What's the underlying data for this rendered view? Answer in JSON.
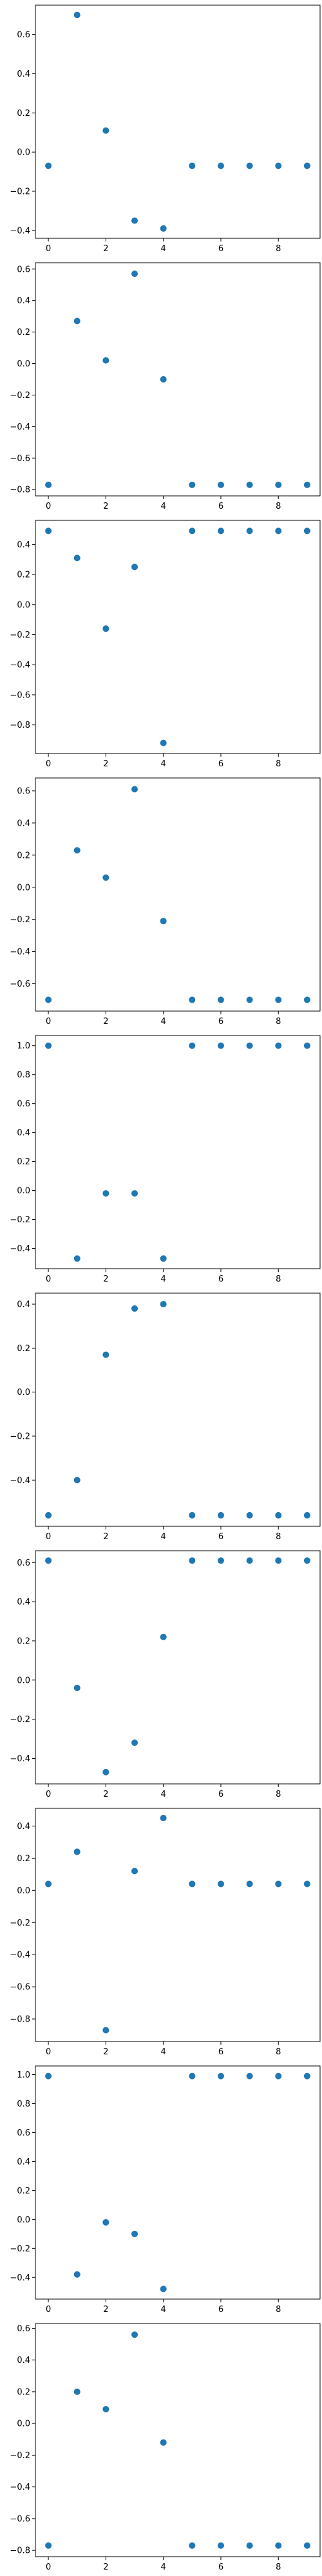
{
  "chart_data": [
    {
      "type": "scatter",
      "x": [
        0,
        1,
        2,
        3,
        4,
        5,
        6,
        7,
        8,
        9
      ],
      "y": [
        -0.07,
        0.7,
        0.11,
        -0.35,
        -0.39,
        -0.07,
        -0.07,
        -0.07,
        -0.07,
        -0.07
      ],
      "xlim": [
        -0.45,
        9.45
      ],
      "ylim": [
        -0.44,
        0.75
      ],
      "xticks": [
        0,
        2,
        4,
        6,
        8
      ],
      "yticks": [
        -0.4,
        -0.2,
        0.0,
        0.2,
        0.4,
        0.6
      ],
      "xticklabels": [
        "0",
        "2",
        "4",
        "6",
        "8"
      ],
      "yticklabels": [
        "−0.4",
        "−0.2",
        "0.0",
        "0.2",
        "0.4",
        "0.6"
      ],
      "color": "#1f77b4",
      "grid": false
    },
    {
      "type": "scatter",
      "x": [
        0,
        1,
        2,
        3,
        4,
        5,
        6,
        7,
        8,
        9
      ],
      "y": [
        -0.77,
        0.27,
        0.02,
        0.57,
        -0.1,
        -0.77,
        -0.77,
        -0.77,
        -0.77,
        -0.77
      ],
      "xlim": [
        -0.45,
        9.45
      ],
      "ylim": [
        -0.84,
        0.64
      ],
      "xticks": [
        0,
        2,
        4,
        6,
        8
      ],
      "yticks": [
        -0.8,
        -0.6,
        -0.4,
        -0.2,
        0.0,
        0.2,
        0.4,
        0.6
      ],
      "xticklabels": [
        "0",
        "2",
        "4",
        "6",
        "8"
      ],
      "yticklabels": [
        "−0.8",
        "−0.6",
        "−0.4",
        "−0.2",
        "0.0",
        "0.2",
        "0.4",
        "0.6"
      ],
      "color": "#1f77b4",
      "grid": false
    },
    {
      "type": "scatter",
      "x": [
        0,
        1,
        2,
        3,
        4,
        5,
        6,
        7,
        8,
        9
      ],
      "y": [
        0.49,
        0.31,
        -0.16,
        0.25,
        -0.92,
        0.49,
        0.49,
        0.49,
        0.49,
        0.49
      ],
      "xlim": [
        -0.45,
        9.45
      ],
      "ylim": [
        -0.99,
        0.56
      ],
      "xticks": [
        0,
        2,
        4,
        6,
        8
      ],
      "yticks": [
        -0.8,
        -0.6,
        -0.4,
        -0.2,
        0.0,
        0.2,
        0.4
      ],
      "xticklabels": [
        "0",
        "2",
        "4",
        "6",
        "8"
      ],
      "yticklabels": [
        "−0.8",
        "−0.6",
        "−0.4",
        "−0.2",
        "0.0",
        "0.2",
        "0.4"
      ],
      "color": "#1f77b4",
      "grid": false
    },
    {
      "type": "scatter",
      "x": [
        0,
        1,
        2,
        3,
        4,
        5,
        6,
        7,
        8,
        9
      ],
      "y": [
        -0.7,
        0.23,
        0.06,
        0.61,
        -0.21,
        -0.7,
        -0.7,
        -0.7,
        -0.7,
        -0.7
      ],
      "xlim": [
        -0.45,
        9.45
      ],
      "ylim": [
        -0.77,
        0.68
      ],
      "xticks": [
        0,
        2,
        4,
        6,
        8
      ],
      "yticks": [
        -0.6,
        -0.4,
        -0.2,
        0.0,
        0.2,
        0.4,
        0.6
      ],
      "xticklabels": [
        "0",
        "2",
        "4",
        "6",
        "8"
      ],
      "yticklabels": [
        "−0.6",
        "−0.4",
        "−0.2",
        "0.0",
        "0.2",
        "0.4",
        "0.6"
      ],
      "color": "#1f77b4",
      "grid": false
    },
    {
      "type": "scatter",
      "x": [
        0,
        1,
        2,
        3,
        4,
        5,
        6,
        7,
        8,
        9
      ],
      "y": [
        1.0,
        -0.47,
        -0.02,
        -0.02,
        -0.47,
        1.0,
        1.0,
        1.0,
        1.0,
        1.0
      ],
      "xlim": [
        -0.45,
        9.45
      ],
      "ylim": [
        -0.54,
        1.07
      ],
      "xticks": [
        0,
        2,
        4,
        6,
        8
      ],
      "yticks": [
        -0.4,
        -0.2,
        0.0,
        0.2,
        0.4,
        0.6,
        0.8,
        1.0
      ],
      "xticklabels": [
        "0",
        "2",
        "4",
        "6",
        "8"
      ],
      "yticklabels": [
        "−0.4",
        "−0.2",
        "0.0",
        "0.2",
        "0.4",
        "0.6",
        "0.8",
        "1.0"
      ],
      "color": "#1f77b4",
      "grid": false
    },
    {
      "type": "scatter",
      "x": [
        0,
        1,
        2,
        3,
        4,
        5,
        6,
        7,
        8,
        9
      ],
      "y": [
        -0.56,
        -0.4,
        0.17,
        0.38,
        0.4,
        -0.56,
        -0.56,
        -0.56,
        -0.56,
        -0.56
      ],
      "xlim": [
        -0.45,
        9.45
      ],
      "ylim": [
        -0.61,
        0.45
      ],
      "xticks": [
        0,
        2,
        4,
        6,
        8
      ],
      "yticks": [
        -0.4,
        -0.2,
        0.0,
        0.2,
        0.4
      ],
      "xticklabels": [
        "0",
        "2",
        "4",
        "6",
        "8"
      ],
      "yticklabels": [
        "−0.4",
        "−0.2",
        "0.0",
        "0.2",
        "0.4"
      ],
      "color": "#1f77b4",
      "grid": false
    },
    {
      "type": "scatter",
      "x": [
        0,
        1,
        2,
        3,
        4,
        5,
        6,
        7,
        8,
        9
      ],
      "y": [
        0.61,
        -0.04,
        -0.47,
        -0.32,
        0.22,
        0.61,
        0.61,
        0.61,
        0.61,
        0.61
      ],
      "xlim": [
        -0.45,
        9.45
      ],
      "ylim": [
        -0.53,
        0.66
      ],
      "xticks": [
        0,
        2,
        4,
        6,
        8
      ],
      "yticks": [
        -0.4,
        -0.2,
        0.0,
        0.2,
        0.4,
        0.6
      ],
      "xticklabels": [
        "0",
        "2",
        "4",
        "6",
        "8"
      ],
      "yticklabels": [
        "−0.4",
        "−0.2",
        "0.0",
        "0.2",
        "0.4",
        "0.6"
      ],
      "color": "#1f77b4",
      "grid": false
    },
    {
      "type": "scatter",
      "x": [
        0,
        1,
        2,
        3,
        4,
        5,
        6,
        7,
        8,
        9
      ],
      "y": [
        0.04,
        0.24,
        -0.87,
        0.12,
        0.45,
        0.04,
        0.04,
        0.04,
        0.04,
        0.04
      ],
      "xlim": [
        -0.45,
        9.45
      ],
      "ylim": [
        -0.94,
        0.51
      ],
      "xticks": [
        0,
        2,
        4,
        6,
        8
      ],
      "yticks": [
        -0.8,
        -0.6,
        -0.4,
        -0.2,
        0.0,
        0.2,
        0.4
      ],
      "xticklabels": [
        "0",
        "2",
        "4",
        "6",
        "8"
      ],
      "yticklabels": [
        "−0.8",
        "−0.6",
        "−0.4",
        "−0.2",
        "0.0",
        "0.2",
        "0.4"
      ],
      "color": "#1f77b4",
      "grid": false
    },
    {
      "type": "scatter",
      "x": [
        0,
        1,
        2,
        3,
        4,
        5,
        6,
        7,
        8,
        9
      ],
      "y": [
        0.99,
        -0.38,
        -0.02,
        -0.1,
        -0.48,
        0.99,
        0.99,
        0.99,
        0.99,
        0.99
      ],
      "xlim": [
        -0.45,
        9.45
      ],
      "ylim": [
        -0.55,
        1.06
      ],
      "xticks": [
        0,
        2,
        4,
        6,
        8
      ],
      "yticks": [
        -0.4,
        -0.2,
        0.0,
        0.2,
        0.4,
        0.6,
        0.8,
        1.0
      ],
      "xticklabels": [
        "0",
        "2",
        "4",
        "6",
        "8"
      ],
      "yticklabels": [
        "−0.4",
        "−0.2",
        "0.0",
        "0.2",
        "0.4",
        "0.6",
        "0.8",
        "1.0"
      ],
      "color": "#1f77b4",
      "grid": false
    },
    {
      "type": "scatter",
      "x": [
        0,
        1,
        2,
        3,
        4,
        5,
        6,
        7,
        8,
        9
      ],
      "y": [
        -0.77,
        0.2,
        0.09,
        0.56,
        -0.12,
        -0.77,
        -0.77,
        -0.77,
        -0.77,
        -0.77
      ],
      "xlim": [
        -0.45,
        9.45
      ],
      "ylim": [
        -0.84,
        0.63
      ],
      "xticks": [
        0,
        2,
        4,
        6,
        8
      ],
      "yticks": [
        -0.8,
        -0.6,
        -0.4,
        -0.2,
        0.0,
        0.2,
        0.4,
        0.6
      ],
      "xticklabels": [
        "0",
        "2",
        "4",
        "6",
        "8"
      ],
      "yticklabels": [
        "−0.8",
        "−0.6",
        "−0.4",
        "−0.2",
        "0.0",
        "0.2",
        "0.4",
        "0.6"
      ],
      "color": "#1f77b4",
      "grid": false
    }
  ]
}
